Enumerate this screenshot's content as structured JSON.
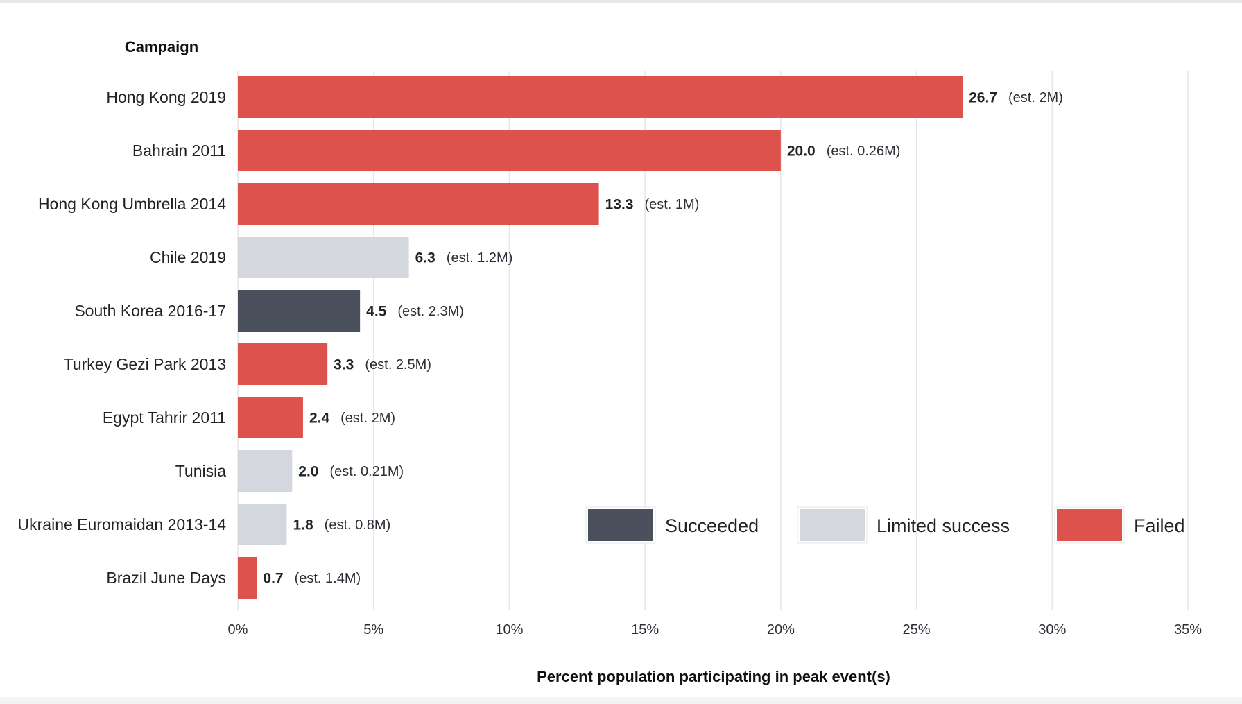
{
  "chart_data": {
    "type": "bar",
    "orientation": "horizontal",
    "ylabel": "Campaign",
    "xlabel": "Percent population participating in peak event(s)",
    "xlim": [
      0,
      35
    ],
    "x_ticks": [
      0,
      5,
      10,
      15,
      20,
      25,
      30,
      35
    ],
    "x_tick_labels": [
      "0%",
      "5%",
      "10%",
      "15%",
      "20%",
      "25%",
      "30%",
      "35%"
    ],
    "grid": "vertical",
    "legend_position": "bottom-right",
    "legend": [
      {
        "key": "succeeded",
        "label": "Succeeded",
        "color": "#4a505c"
      },
      {
        "key": "limited",
        "label": "Limited success",
        "color": "#d4d7dd"
      },
      {
        "key": "failed",
        "label": "Failed",
        "color": "#de524d"
      }
    ],
    "categories": [
      "Hong Kong 2019",
      "Bahrain 2011",
      "Hong Kong Umbrella 2014",
      "Chile 2019",
      "South Korea 2016-17",
      "Turkey Gezi Park 2013",
      "Egypt Tahrir 2011",
      "Tunisia",
      "Ukraine Euromaidan 2013-14",
      "Brazil June Days"
    ],
    "values": [
      26.7,
      20.0,
      13.3,
      6.3,
      4.5,
      3.3,
      2.4,
      2.0,
      1.8,
      0.7
    ],
    "value_labels": [
      "26.7",
      "20.0",
      "13.3",
      "6.3",
      "4.5",
      "3.3",
      "2.4",
      "2.0",
      "1.8",
      "0.7"
    ],
    "notes": [
      "(est. 2M)",
      "(est. 0.26M)",
      "(est. 1M)",
      "(est. 1.2M)",
      "(est. 2.3M)",
      "(est. 2.5M)",
      "(est. 2M)",
      "(est. 0.21M)",
      "(est. 0.8M)",
      "(est. 1.4M)"
    ],
    "outcomes": [
      "failed",
      "failed",
      "failed",
      "limited",
      "succeeded",
      "failed",
      "failed",
      "limited",
      "limited",
      "failed"
    ]
  }
}
